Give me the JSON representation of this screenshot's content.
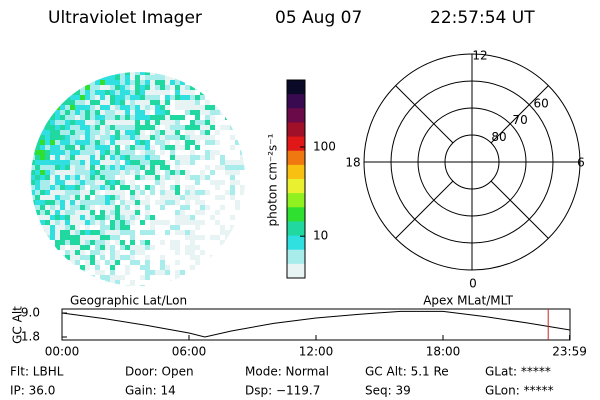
{
  "header": {
    "title": "Ultraviolet Imager",
    "date": "05 Aug 07",
    "time": "22:57:54 UT"
  },
  "colorbar": {
    "label": "photon cm⁻²s⁻¹",
    "log": true,
    "clim": [
      3.4,
      563
    ],
    "ticks": [
      10,
      100
    ],
    "colors": [
      "#0a0a28",
      "#3a0a50",
      "#6a0a48",
      "#a01028",
      "#e01818",
      "#f07810",
      "#f8c010",
      "#e8f030",
      "#90f020",
      "#30e030",
      "#20d8a0",
      "#30e0e0",
      "#a8ecec",
      "#e8f4f4"
    ]
  },
  "polar": {
    "mlt_labels": {
      "top": "12",
      "left": "18",
      "right": "6",
      "bottom": "0"
    },
    "lat_labels": [
      80,
      70,
      60
    ],
    "min_lat": 50
  },
  "altitude_plot": {
    "type": "line",
    "y_label": "GC Alt",
    "left_label": "Geographic Lat/Lon",
    "right_label": "Apex MLat/MLT",
    "x": [
      0,
      2,
      4,
      6,
      6.75,
      8,
      10,
      12,
      14,
      16,
      18,
      20,
      22,
      24
    ],
    "values": [
      9.0,
      7.3,
      5.3,
      3.0,
      1.8,
      3.6,
      5.9,
      7.5,
      8.6,
      9.5,
      9.5,
      7.9,
      6.0,
      3.9
    ],
    "color": "#000000",
    "marker": 22.97,
    "marker_color": "#d02020",
    "xlim": [
      0,
      24
    ],
    "ylim": [
      0.9,
      10.2
    ],
    "xticks": [
      {
        "value": 0,
        "label": "00:00"
      },
      {
        "value": 6,
        "label": "06:00"
      },
      {
        "value": 12,
        "label": "12:00"
      },
      {
        "value": 18,
        "label": "18:00"
      },
      {
        "value": 23.98,
        "label": "23:59"
      }
    ],
    "yticks": [
      {
        "value": 9.0,
        "label": "9.0"
      },
      {
        "value": 1.8,
        "label": "1.8"
      }
    ]
  },
  "info": [
    [
      "Flt: LBHL",
      "IP: 36.0"
    ],
    [
      "Door: Open",
      "Gain: 14"
    ],
    [
      "Mode: Normal",
      "Dsp: −119.7"
    ],
    [
      "GC Alt: 5.1 Re",
      "Seq: 39"
    ],
    [
      "GLat: *****",
      "GLon: *****"
    ]
  ]
}
